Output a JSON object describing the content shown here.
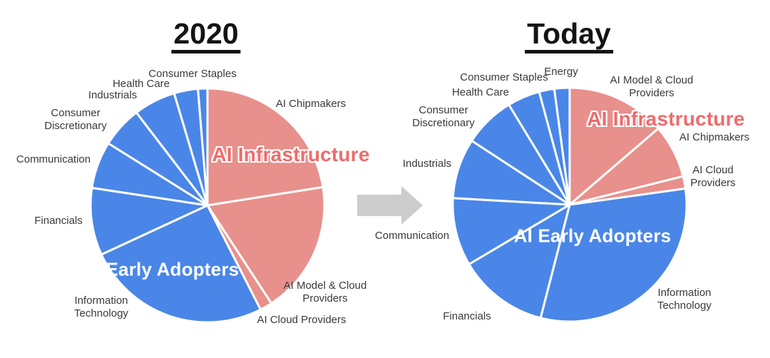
{
  "page": {
    "background": "#FFFFFF"
  },
  "colors": {
    "ai_infrastructure_fill": "#E8908B",
    "ai_early_adopters_fill": "#4A86E8",
    "infrastructure_label_color": "#ED6C6C",
    "early_adopters_label_color": "#FFFFFF",
    "sector_label_text": "#3A3A3A",
    "title_text": "#141414",
    "slice_divider": "#FFFFFF",
    "arrow_fill": "#CCCCCC"
  },
  "arrow": {
    "icon": "right-arrow",
    "direction": "right"
  },
  "chart_data": [
    {
      "type": "pie",
      "title": "2020",
      "start_angle_deg": 0,
      "direction": "clockwise",
      "legend_position": "none",
      "annotations": {
        "infrastructure": "AI Infrastructure",
        "early_adopters": "AI Early Adopters"
      },
      "slices": [
        {
          "label": "AI Chipmakers",
          "group": "AI Infrastructure",
          "pct": 22.5
        },
        {
          "label": "AI Model & Cloud Providers",
          "group": "AI Infrastructure",
          "pct": 18.3
        },
        {
          "label": "AI Cloud Providers",
          "group": "AI Infrastructure",
          "pct": 1.7
        },
        {
          "label": "Information Technology",
          "group": "AI Early Adopters",
          "pct": 25.6
        },
        {
          "label": "Financials",
          "group": "AI Early Adopters",
          "pct": 9.3
        },
        {
          "label": "Communication",
          "group": "AI Early Adopters",
          "pct": 6.5
        },
        {
          "label": "Consumer Discretionary",
          "group": "AI Early Adopters",
          "pct": 5.7
        },
        {
          "label": "Industrials",
          "group": "AI Early Adopters",
          "pct": 5.8
        },
        {
          "label": "Health Care",
          "group": "AI Early Adopters",
          "pct": 3.3
        },
        {
          "label": "Consumer Staples",
          "group": "AI Early Adopters",
          "pct": 1.3
        }
      ]
    },
    {
      "type": "pie",
      "title": "Today",
      "start_angle_deg": 0,
      "direction": "clockwise",
      "legend_position": "none",
      "annotations": {
        "infrastructure": "AI Infrastructure",
        "early_adopters": "AI Early Adopters"
      },
      "slices": [
        {
          "label": "AI Model & Cloud Providers",
          "group": "AI Infrastructure",
          "pct": 13.7
        },
        {
          "label": "AI Chipmakers",
          "group": "AI Infrastructure",
          "pct": 7.4
        },
        {
          "label": "AI Cloud Providers",
          "group": "AI Infrastructure",
          "pct": 1.7
        },
        {
          "label": "Information Technology",
          "group": "AI Early Adopters",
          "pct": 31.2
        },
        {
          "label": "Financials",
          "group": "AI Early Adopters",
          "pct": 12.5
        },
        {
          "label": "Communication",
          "group": "AI Early Adopters",
          "pct": 9.4
        },
        {
          "label": "Industrials",
          "group": "AI Early Adopters",
          "pct": 8.3
        },
        {
          "label": "Consumer Discretionary",
          "group": "AI Early Adopters",
          "pct": 7.1
        },
        {
          "label": "Health Care",
          "group": "AI Early Adopters",
          "pct": 4.5
        },
        {
          "label": "Consumer Staples",
          "group": "AI Early Adopters",
          "pct": 2.1
        },
        {
          "label": "Energy",
          "group": "AI Early Adopters",
          "pct": 2.1
        }
      ]
    }
  ]
}
